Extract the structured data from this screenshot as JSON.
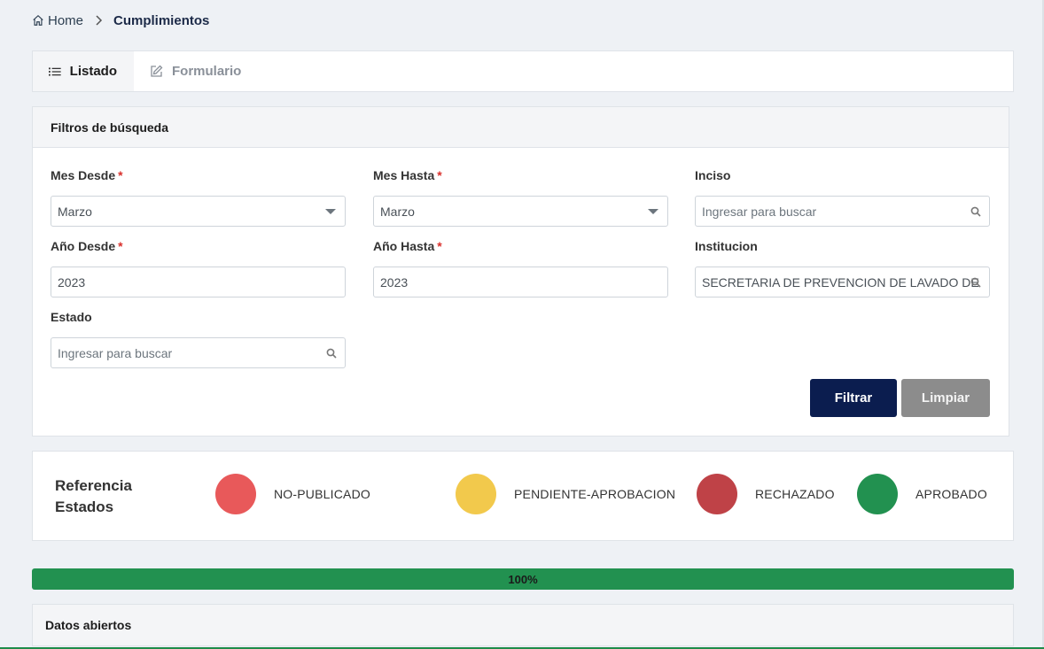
{
  "breadcrumb": {
    "home": "Home",
    "current": "Cumplimientos"
  },
  "tabs": [
    {
      "label": "Listado",
      "icon": "list-icon",
      "active": true
    },
    {
      "label": "Formulario",
      "icon": "edit-icon",
      "active": false
    }
  ],
  "filters": {
    "title": "Filtros de búsqueda",
    "mes_desde": {
      "label": "Mes Desde",
      "required": "*",
      "value": "Marzo"
    },
    "mes_hasta": {
      "label": "Mes Hasta",
      "required": "*",
      "value": "Marzo"
    },
    "inciso": {
      "label": "Inciso",
      "placeholder": "Ingresar para buscar"
    },
    "anio_desde": {
      "label": "Año Desde",
      "required": "*",
      "value": "2023"
    },
    "anio_hasta": {
      "label": "Año Hasta",
      "required": "*",
      "value": "2023"
    },
    "institucion": {
      "label": "Institucion",
      "value": "SECRETARIA DE PREVENCION DE LAVADO DE DINERO"
    },
    "estado": {
      "label": "Estado",
      "placeholder": "Ingresar para buscar"
    },
    "filter_button": "Filtrar",
    "clear_button": "Limpiar"
  },
  "legend": {
    "title": "Referencia Estados",
    "items": [
      {
        "label": "NO-PUBLICADO",
        "color": "#e8595a"
      },
      {
        "label": "PENDIENTE-APROBACION",
        "color": "#f2c94c"
      },
      {
        "label": "RECHAZADO",
        "color": "#bf4247"
      },
      {
        "label": "APROBADO",
        "color": "#229150"
      }
    ]
  },
  "progress": {
    "label": "100%",
    "value": 100,
    "color": "#229150"
  },
  "open_data": {
    "title": "Datos abiertos"
  }
}
